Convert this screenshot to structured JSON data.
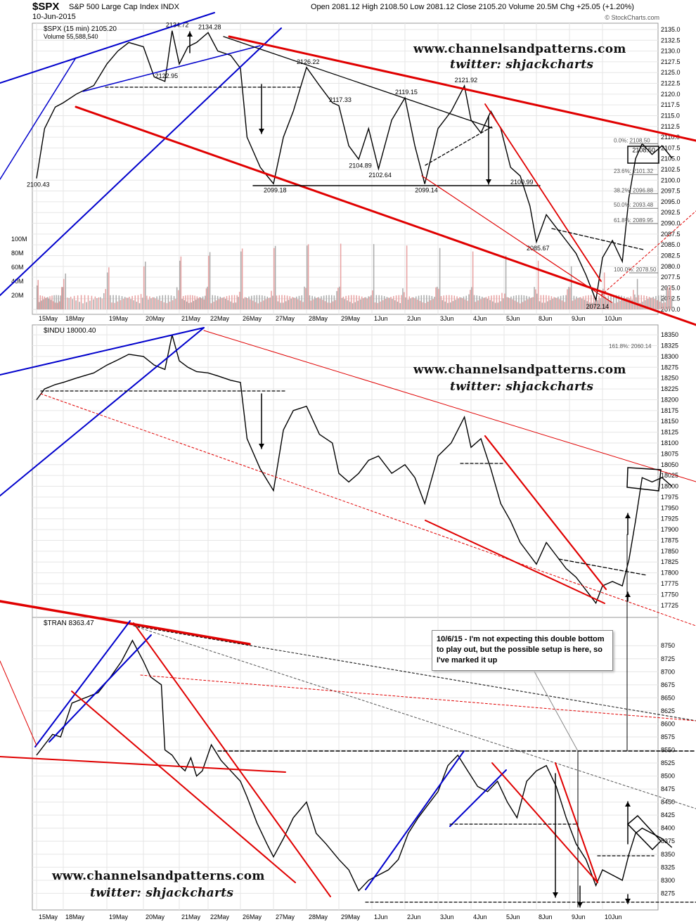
{
  "header": {
    "symbol": "$SPX",
    "name": "S&P 500 Large Cap Index  INDX",
    "date": "10-Jun-2015",
    "ohlc_text": "Open 2081.12  High 2108.50  Low 2081.12  Close 2105.20  Volume 20.5M  Chg +25.05 (+1.20%)",
    "credit": "© StockCharts.com"
  },
  "watermark": {
    "site": "www.channelsandpatterns.com",
    "twitter": "twitter: shjackcharts"
  },
  "annotation_note": "10/6/15 - I'm not expecting this double bottom to play out, but the possible setup is here, so I've marked it up",
  "x_tick_labels": [
    "15May",
    "18May",
    "19May",
    "20May",
    "21May",
    "22May",
    "26May",
    "27May",
    "28May",
    "29May",
    "1Jun",
    "2Jun",
    "3Jun",
    "4Jun",
    "5Jun",
    "8Jun",
    "9Jun",
    "10Jun"
  ],
  "colors": {
    "price": "#000000",
    "volume_up": "#aaaaaa",
    "volume_down": "#e8a0a0",
    "channel_red": "#e00000",
    "channel_blue": "#0000cc",
    "grid": "#e6e6e6"
  },
  "chart_data": [
    {
      "type": "line",
      "title": "$SPX (15 min) 2105.20",
      "volume_label": "Volume 55,588,540",
      "x": [
        "15May",
        "18May",
        "19May",
        "20May",
        "21May",
        "22May",
        "26May",
        "27May",
        "28May",
        "29May",
        "1Jun",
        "2Jun",
        "3Jun",
        "4Jun",
        "5Jun",
        "8Jun",
        "9Jun",
        "10Jun"
      ],
      "ylim": [
        2070,
        2135
      ],
      "y_ticks": [
        "2135.0",
        "2132.5",
        "2130.0",
        "2127.5",
        "2125.0",
        "2122.5",
        "2120.0",
        "2117.5",
        "2115.0",
        "2112.5",
        "2110.0",
        "2107.5",
        "2105.0",
        "2102.5",
        "2100.0",
        "2097.5",
        "2095.0",
        "2092.5",
        "2090.0",
        "2087.5",
        "2085.0",
        "2082.5",
        "2080.0",
        "2077.5",
        "2075.0",
        "2072.5",
        "2070.0"
      ],
      "volume_ticks": [
        "100M",
        "80M",
        "60M",
        "40M",
        "20M"
      ],
      "series": [
        {
          "values": [
            [
              0,
              2100.43
            ],
            [
              0.3,
              2112
            ],
            [
              0.7,
              2117
            ],
            [
              1.0,
              2118
            ],
            [
              1.3,
              2120
            ],
            [
              1.7,
              2122
            ],
            [
              2.0,
              2127
            ],
            [
              2.3,
              2130
            ],
            [
              2.6,
              2132
            ],
            [
              3.0,
              2131
            ],
            [
              3.3,
              2124
            ],
            [
              3.6,
              2122.95
            ],
            [
              3.8,
              2134.72
            ],
            [
              4.0,
              2127
            ],
            [
              4.3,
              2131
            ],
            [
              4.6,
              2132
            ],
            [
              5.0,
              2134.28
            ],
            [
              5.3,
              2130
            ],
            [
              5.7,
              2129
            ],
            [
              6.0,
              2126
            ],
            [
              6.2,
              2110
            ],
            [
              6.6,
              2103
            ],
            [
              7.0,
              2099.18
            ],
            [
              7.3,
              2110
            ],
            [
              7.6,
              2116
            ],
            [
              8.0,
              2126.22
            ],
            [
              8.4,
              2122
            ],
            [
              8.8,
              2118
            ],
            [
              9.0,
              2117.33
            ],
            [
              9.3,
              2108
            ],
            [
              9.6,
              2104.89
            ],
            [
              9.9,
              2112
            ],
            [
              10.2,
              2102.64
            ],
            [
              10.6,
              2114
            ],
            [
              11.0,
              2119.15
            ],
            [
              11.3,
              2108
            ],
            [
              11.6,
              2099.14
            ],
            [
              12.0,
              2112
            ],
            [
              12.4,
              2116
            ],
            [
              12.8,
              2121.92
            ],
            [
              13.0,
              2114
            ],
            [
              13.3,
              2111
            ],
            [
              13.6,
              2116
            ],
            [
              13.9,
              2112
            ],
            [
              14.2,
              2103
            ],
            [
              14.5,
              2100.99
            ],
            [
              14.8,
              2094
            ],
            [
              15.0,
              2085.67
            ],
            [
              15.3,
              2092
            ],
            [
              15.6,
              2089
            ],
            [
              15.9,
              2086
            ],
            [
              16.2,
              2083
            ],
            [
              16.5,
              2078
            ],
            [
              16.8,
              2072.14
            ],
            [
              17.0,
              2082
            ],
            [
              17.3,
              2086
            ],
            [
              17.6,
              2081.12
            ],
            [
              17.8,
              2096
            ],
            [
              18.0,
              2105
            ],
            [
              18.2,
              2108.5
            ],
            [
              18.5,
              2106
            ],
            [
              18.8,
              2108
            ],
            [
              19.1,
              2105.2
            ]
          ]
        }
      ],
      "price_labels": [
        {
          "x": 0.0,
          "y": 2100.43,
          "text": "2100.43"
        },
        {
          "x": 3.6,
          "y": 2122.95,
          "text": "2122.95"
        },
        {
          "x": 3.9,
          "y": 2134.72,
          "text": "2134.72"
        },
        {
          "x": 5.0,
          "y": 2134.28,
          "text": "2134.28"
        },
        {
          "x": 7.0,
          "y": 2099.18,
          "text": "2099.18"
        },
        {
          "x": 8.0,
          "y": 2126.22,
          "text": "2126.22"
        },
        {
          "x": 9.0,
          "y": 2117.33,
          "text": "2117.33"
        },
        {
          "x": 9.6,
          "y": 2104.89,
          "text": "2104.89"
        },
        {
          "x": 10.2,
          "y": 2102.64,
          "text": "2102.64"
        },
        {
          "x": 11.0,
          "y": 2119.15,
          "text": "2119.15"
        },
        {
          "x": 11.6,
          "y": 2099.14,
          "text": "2099.14"
        },
        {
          "x": 12.8,
          "y": 2121.92,
          "text": "2121.92"
        },
        {
          "x": 14.5,
          "y": 2100.99,
          "text": "2100.99"
        },
        {
          "x": 15.0,
          "y": 2085.67,
          "text": "2085.67"
        },
        {
          "x": 16.8,
          "y": 2072.14,
          "text": "2072.14"
        },
        {
          "x": 18.2,
          "y": 2108.5,
          "text": "2108.50"
        }
      ],
      "fib_levels": [
        {
          "text": "0.0%: 2108.50",
          "y": 2108.5
        },
        {
          "text": "23.6%: 2101.32",
          "y": 2101.32
        },
        {
          "text": "38.2%: 2096.88",
          "y": 2096.88
        },
        {
          "text": "50.0%: 2093.48",
          "y": 2093.48
        },
        {
          "text": "61.8%: 2089.95",
          "y": 2089.95
        },
        {
          "text": "100.0%: 2078.50",
          "y": 2078.5
        }
      ]
    },
    {
      "type": "line",
      "title": "$INDU 18000.40",
      "ylim": [
        17710,
        18360
      ],
      "y_ticks": [
        "18350",
        "18325",
        "18300",
        "18275",
        "18250",
        "18225",
        "18200",
        "18175",
        "18150",
        "18125",
        "18100",
        "18075",
        "18050",
        "18025",
        "18000",
        "17975",
        "17950",
        "17925",
        "17900",
        "17875",
        "17850",
        "17825",
        "17800",
        "17775",
        "17750",
        "17725"
      ],
      "fib_label": "161.8%: 2060.14",
      "series": [
        {
          "values": [
            [
              0,
              18200
            ],
            [
              0.3,
              18225
            ],
            [
              0.7,
              18235
            ],
            [
              1.0,
              18240
            ],
            [
              1.3,
              18250
            ],
            [
              1.7,
              18262
            ],
            [
              2.0,
              18280
            ],
            [
              2.3,
              18292
            ],
            [
              2.6,
              18305
            ],
            [
              3.0,
              18300
            ],
            [
              3.3,
              18280
            ],
            [
              3.6,
              18270
            ],
            [
              3.8,
              18350
            ],
            [
              4.0,
              18290
            ],
            [
              4.3,
              18275
            ],
            [
              4.6,
              18265
            ],
            [
              5.0,
              18262
            ],
            [
              5.3,
              18255
            ],
            [
              5.7,
              18245
            ],
            [
              6.0,
              18240
            ],
            [
              6.2,
              18110
            ],
            [
              6.6,
              18040
            ],
            [
              7.0,
              17990
            ],
            [
              7.3,
              18130
            ],
            [
              7.6,
              18175
            ],
            [
              8.0,
              18185
            ],
            [
              8.4,
              18120
            ],
            [
              8.8,
              18100
            ],
            [
              9.0,
              18030
            ],
            [
              9.3,
              18010
            ],
            [
              9.6,
              18030
            ],
            [
              9.9,
              18060
            ],
            [
              10.2,
              18070
            ],
            [
              10.6,
              18030
            ],
            [
              11.0,
              18050
            ],
            [
              11.3,
              18020
            ],
            [
              11.6,
              17960
            ],
            [
              12.0,
              18070
            ],
            [
              12.4,
              18100
            ],
            [
              12.8,
              18160
            ],
            [
              13.0,
              18090
            ],
            [
              13.3,
              18110
            ],
            [
              13.6,
              18040
            ],
            [
              13.9,
              17960
            ],
            [
              14.2,
              17920
            ],
            [
              14.5,
              17870
            ],
            [
              14.8,
              17840
            ],
            [
              15.0,
              17820
            ],
            [
              15.3,
              17870
            ],
            [
              15.6,
              17840
            ],
            [
              15.9,
              17810
            ],
            [
              16.2,
              17790
            ],
            [
              16.5,
              17760
            ],
            [
              16.8,
              17730
            ],
            [
              17.0,
              17770
            ],
            [
              17.3,
              17780
            ],
            [
              17.6,
              17770
            ],
            [
              17.8,
              17830
            ],
            [
              18.0,
              17920
            ],
            [
              18.2,
              18020
            ],
            [
              18.5,
              18010
            ],
            [
              18.8,
              18020
            ],
            [
              19.1,
              18000
            ]
          ]
        }
      ]
    },
    {
      "type": "line",
      "title": "$TRAN 8363.47",
      "ylim": [
        8262,
        8780
      ],
      "y_ticks": [
        "8750",
        "8725",
        "8700",
        "8675",
        "8650",
        "8625",
        "8600",
        "8575",
        "8550",
        "8525",
        "8500",
        "8475",
        "8450",
        "8425",
        "8400",
        "8375",
        "8350",
        "8325",
        "8300",
        "8275"
      ],
      "series": [
        {
          "values": [
            [
              0,
              8540
            ],
            [
              0.3,
              8560
            ],
            [
              0.6,
              8580
            ],
            [
              0.9,
              8575
            ],
            [
              1.2,
              8640
            ],
            [
              1.5,
              8650
            ],
            [
              1.8,
              8660
            ],
            [
              2.1,
              8690
            ],
            [
              2.4,
              8720
            ],
            [
              2.7,
              8760
            ],
            [
              3.0,
              8720
            ],
            [
              3.2,
              8690
            ],
            [
              3.5,
              8675
            ],
            [
              3.6,
              8550
            ],
            [
              3.8,
              8540
            ],
            [
              4.0,
              8520
            ],
            [
              4.2,
              8510
            ],
            [
              4.4,
              8535
            ],
            [
              4.6,
              8500
            ],
            [
              4.8,
              8510
            ],
            [
              5.1,
              8560
            ],
            [
              5.4,
              8530
            ],
            [
              5.7,
              8510
            ],
            [
              6.0,
              8490
            ],
            [
              6.2,
              8460
            ],
            [
              6.5,
              8410
            ],
            [
              6.8,
              8370
            ],
            [
              7.0,
              8345
            ],
            [
              7.3,
              8380
            ],
            [
              7.6,
              8420
            ],
            [
              8.0,
              8450
            ],
            [
              8.3,
              8390
            ],
            [
              8.6,
              8370
            ],
            [
              9.0,
              8340
            ],
            [
              9.3,
              8320
            ],
            [
              9.6,
              8280
            ],
            [
              9.9,
              8300
            ],
            [
              10.2,
              8310
            ],
            [
              10.5,
              8320
            ],
            [
              10.8,
              8340
            ],
            [
              11.1,
              8390
            ],
            [
              11.4,
              8420
            ],
            [
              11.7,
              8445
            ],
            [
              12.0,
              8470
            ],
            [
              12.3,
              8520
            ],
            [
              12.6,
              8540
            ],
            [
              12.9,
              8510
            ],
            [
              13.2,
              8480
            ],
            [
              13.5,
              8470
            ],
            [
              13.8,
              8490
            ],
            [
              14.1,
              8450
            ],
            [
              14.4,
              8420
            ],
            [
              14.7,
              8490
            ],
            [
              15.0,
              8510
            ],
            [
              15.3,
              8520
            ],
            [
              15.6,
              8480
            ],
            [
              15.9,
              8420
            ],
            [
              16.2,
              8370
            ],
            [
              16.5,
              8340
            ],
            [
              16.8,
              8290
            ],
            [
              17.0,
              8320
            ],
            [
              17.3,
              8310
            ],
            [
              17.6,
              8300
            ],
            [
              17.8,
              8350
            ],
            [
              18.0,
              8390
            ],
            [
              18.2,
              8400
            ],
            [
              18.5,
              8390
            ],
            [
              18.8,
              8380
            ],
            [
              19.1,
              8363
            ]
          ]
        }
      ]
    }
  ]
}
